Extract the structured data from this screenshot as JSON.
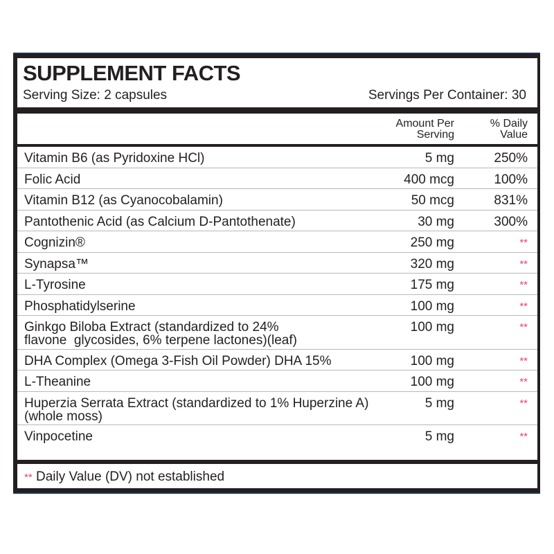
{
  "title": "SUPPLEMENT FACTS",
  "serving_size": "Serving Size:  2 capsules",
  "servings_per_container": "Servings Per Container:  30",
  "header": {
    "amount_line1": "Amount Per",
    "amount_line2": "Serving",
    "dv_line1": "% Daily",
    "dv_line2": "Value"
  },
  "rows": [
    {
      "name": "Vitamin B6 (as Pyridoxine HCl)",
      "amount": "5 mg",
      "dv": "250%"
    },
    {
      "name": "Folic Acid",
      "amount": "400 mcg",
      "dv": "100%"
    },
    {
      "name": "Vitamin B12 (as Cyanocobalamin)",
      "amount": "50 mcg",
      "dv": "831%"
    },
    {
      "name": "Pantothenic Acid (as Calcium D-Pantothenate)",
      "amount": "30 mg",
      "dv": "300%"
    },
    {
      "name": "Cognizin®",
      "amount": "250 mg",
      "dv": "**"
    },
    {
      "name": "Synapsa™",
      "amount": "320 mg",
      "dv": "**"
    },
    {
      "name": "L-Tyrosine",
      "amount": "175 mg",
      "dv": "**"
    },
    {
      "name": "Phosphatidylserine",
      "amount": "100 mg",
      "dv": "**"
    },
    {
      "name": "Ginkgo Biloba Extract (standardized to 24% flavone  glycosides, 6% terpene lactones)(leaf)",
      "amount": "100 mg",
      "dv": "**"
    },
    {
      "name": "DHA Complex (Omega 3-Fish Oil Powder) DHA 15%",
      "amount": "100 mg",
      "dv": "**"
    },
    {
      "name": "L-Theanine",
      "amount": "100 mg",
      "dv": "**"
    },
    {
      "name": "Huperzia Serrata Extract (standardized to 1% Huperzine A)(whole moss)",
      "amount": "5 mg",
      "dv": "**"
    },
    {
      "name": "Vinpocetine",
      "amount": "5 mg",
      "dv": "**"
    }
  ],
  "footnote": {
    "mark": "**",
    "text": " Daily Value (DV) not established"
  },
  "colors": {
    "star": "#e8407a",
    "border": "#231f20",
    "frame": "#1c3357"
  }
}
